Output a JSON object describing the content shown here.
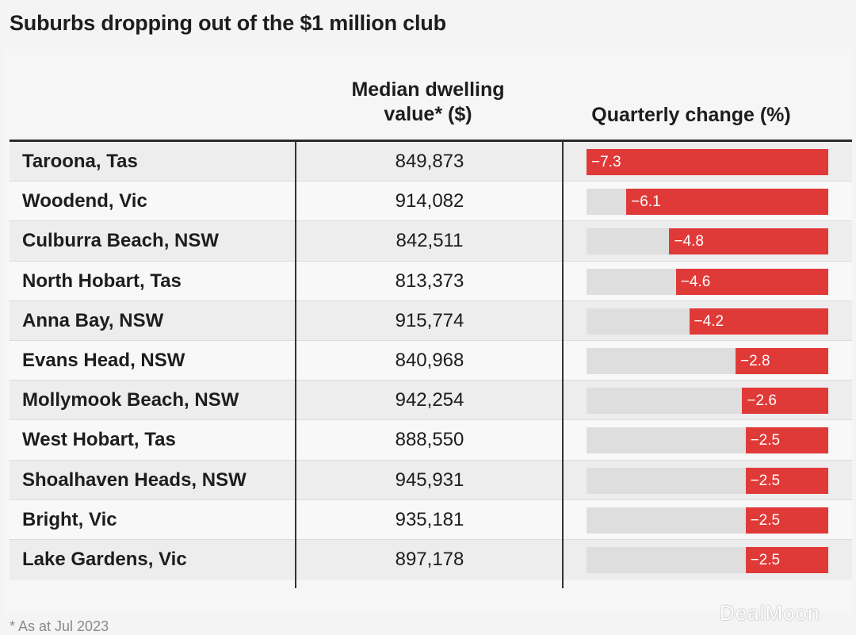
{
  "title": "Suburbs dropping out of the $1 million club",
  "headers": {
    "value_line1": "Median dwelling",
    "value_line2": "value* ($)",
    "change": "Quarterly change (%)"
  },
  "footnote": "* As at Jul 2023",
  "watermark": "DealMoon",
  "colors": {
    "bar": "#e03a38",
    "track": "#dedede"
  },
  "chart_data": {
    "type": "table",
    "title": "Suburbs dropping out of the $1 million club",
    "columns": [
      "",
      "Median dwelling value* ($)",
      "Quarterly change (%)"
    ],
    "bar_max_abs": 7.3,
    "rows": [
      {
        "suburb": "Taroona, Tas",
        "value": "849,873",
        "change": -7.3,
        "change_label": "−7.3"
      },
      {
        "suburb": "Woodend, Vic",
        "value": "914,082",
        "change": -6.1,
        "change_label": "−6.1"
      },
      {
        "suburb": "Culburra Beach, NSW",
        "value": "842,511",
        "change": -4.8,
        "change_label": "−4.8"
      },
      {
        "suburb": "North Hobart, Tas",
        "value": "813,373",
        "change": -4.6,
        "change_label": "−4.6"
      },
      {
        "suburb": "Anna Bay, NSW",
        "value": "915,774",
        "change": -4.2,
        "change_label": "−4.2"
      },
      {
        "suburb": "Evans Head, NSW",
        "value": "840,968",
        "change": -2.8,
        "change_label": "−2.8"
      },
      {
        "suburb": "Mollymook Beach, NSW",
        "value": "942,254",
        "change": -2.6,
        "change_label": "−2.6"
      },
      {
        "suburb": "West Hobart, Tas",
        "value": "888,550",
        "change": -2.5,
        "change_label": "−2.5"
      },
      {
        "suburb": "Shoalhaven Heads, NSW",
        "value": "945,931",
        "change": -2.5,
        "change_label": "−2.5"
      },
      {
        "suburb": "Bright, Vic",
        "value": "935,181",
        "change": -2.5,
        "change_label": "−2.5"
      },
      {
        "suburb": "Lake Gardens, Vic",
        "value": "897,178",
        "change": -2.5,
        "change_label": "−2.5"
      }
    ]
  }
}
